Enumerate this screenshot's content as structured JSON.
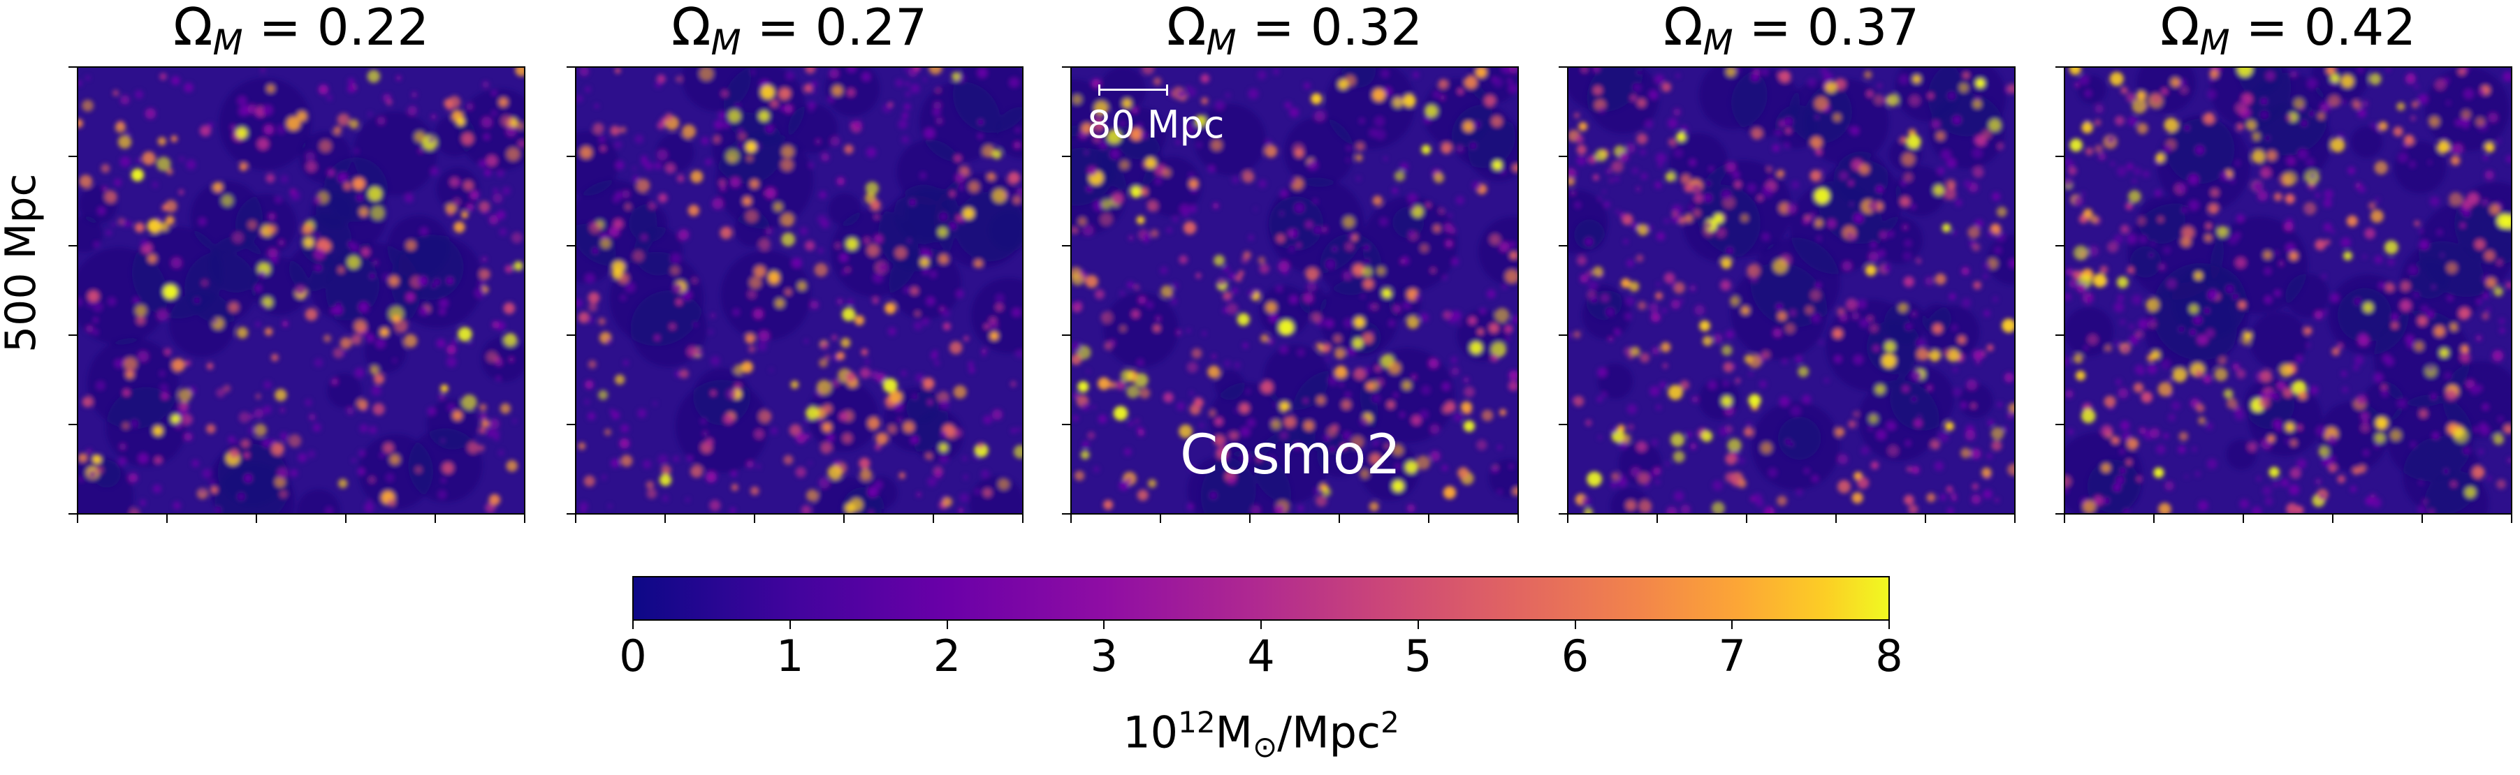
{
  "figure": {
    "ylabel": "500 Mpc",
    "panels": [
      {
        "omega_label": "Ω",
        "subscript": "M",
        "equals": " = 0.22",
        "value": 0.22
      },
      {
        "omega_label": "Ω",
        "subscript": "M",
        "equals": " = 0.27",
        "value": 0.27
      },
      {
        "omega_label": "Ω",
        "subscript": "M",
        "equals": " = 0.32",
        "value": 0.32
      },
      {
        "omega_label": "Ω",
        "subscript": "M",
        "equals": " = 0.37",
        "value": 0.37
      },
      {
        "omega_label": "Ω",
        "subscript": "M",
        "equals": " = 0.42",
        "value": 0.42
      }
    ],
    "scalebar_label": "80 Mpc",
    "annotation": "Cosmo2",
    "colormap": "plasma",
    "colorbar": {
      "ticks": [
        "0",
        "1",
        "2",
        "3",
        "4",
        "5",
        "6",
        "7",
        "8"
      ],
      "range": [
        0,
        8
      ],
      "unit_base": "10",
      "unit_exp": "12",
      "unit_mid": "M",
      "unit_sun": "⊙",
      "unit_tail": "/Mpc",
      "unit_exp2": "2"
    }
  }
}
